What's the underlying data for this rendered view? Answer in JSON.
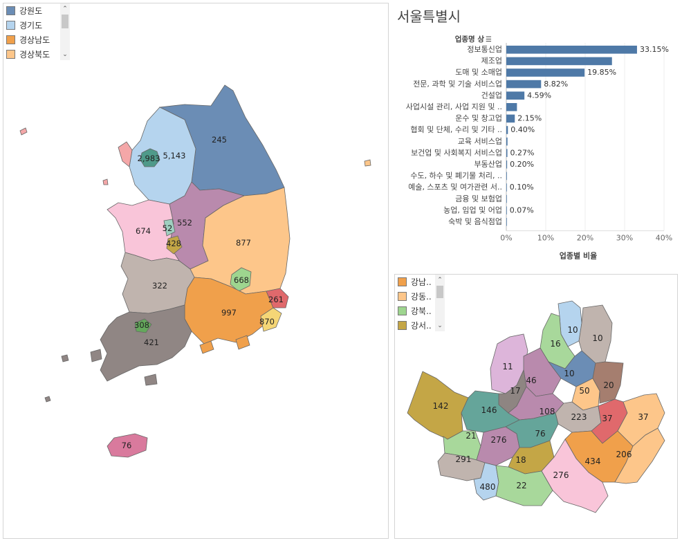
{
  "korea_legend": {
    "items": [
      {
        "label": "강원도",
        "color": "#6b8db5"
      },
      {
        "label": "경기도",
        "color": "#b5d4ee"
      },
      {
        "label": "경상남도",
        "color": "#f0a04b"
      },
      {
        "label": "경상북도",
        "color": "#fdc68a"
      }
    ]
  },
  "korea_map": {
    "labels": [
      "245",
      "5,143",
      "2,983",
      "674",
      "52",
      "552",
      "428",
      "877",
      "322",
      "668",
      "997",
      "261",
      "870",
      "308",
      "421",
      "76"
    ]
  },
  "seoul_legend": {
    "items": [
      {
        "label": "강남..",
        "color": "#f0a04b"
      },
      {
        "label": "강동..",
        "color": "#fdc68a"
      },
      {
        "label": "강북..",
        "color": "#9ed58f"
      },
      {
        "label": "강서..",
        "color": "#c4a646"
      }
    ]
  },
  "seoul_map": {
    "labels": [
      "10",
      "10",
      "16",
      "11",
      "46",
      "10",
      "50",
      "20",
      "17",
      "142",
      "146",
      "108",
      "223",
      "37",
      "37",
      "21",
      "276",
      "76",
      "291",
      "18",
      "434",
      "206",
      "276",
      "480",
      "22"
    ]
  },
  "chart_data": {
    "type": "bar",
    "title": "서울특별시",
    "ylabel": "업종명 상",
    "xlabel": "업종별 비율",
    "xlim": [
      0,
      40
    ],
    "xticks": [
      "0%",
      "10%",
      "20%",
      "30%",
      "40%"
    ],
    "categories": [
      "정보통신업",
      "제조업",
      "도매 및 소매업",
      "전문, 과학 및 기술 서비스업",
      "건설업",
      "사업시설 관리, 사업 지원 및 ..",
      "운수 및 창고업",
      "협회 및 단체, 수리 및 기타 ..",
      "교육 서비스업",
      "보건업 및 사회복지 서비스업",
      "부동산업",
      "수도, 하수 및 폐기물 처리, ..",
      "예술, 스포츠 및 여가관련 서..",
      "금융 및 보험업",
      "농업, 임업 및 어업",
      "숙박 및 음식점업"
    ],
    "values": [
      33.15,
      26.8,
      19.85,
      8.82,
      4.59,
      2.7,
      2.15,
      0.4,
      0.3,
      0.27,
      0.2,
      0.15,
      0.1,
      0.08,
      0.07,
      0.05
    ],
    "data_labels": [
      "33.15%",
      "",
      "19.85%",
      "8.82%",
      "4.59%",
      "",
      "2.15%",
      "0.40%",
      "",
      "0.27%",
      "0.20%",
      "",
      "0.10%",
      "",
      "0.07%",
      ""
    ],
    "bar_color": "#4e79a7",
    "grid": true
  }
}
